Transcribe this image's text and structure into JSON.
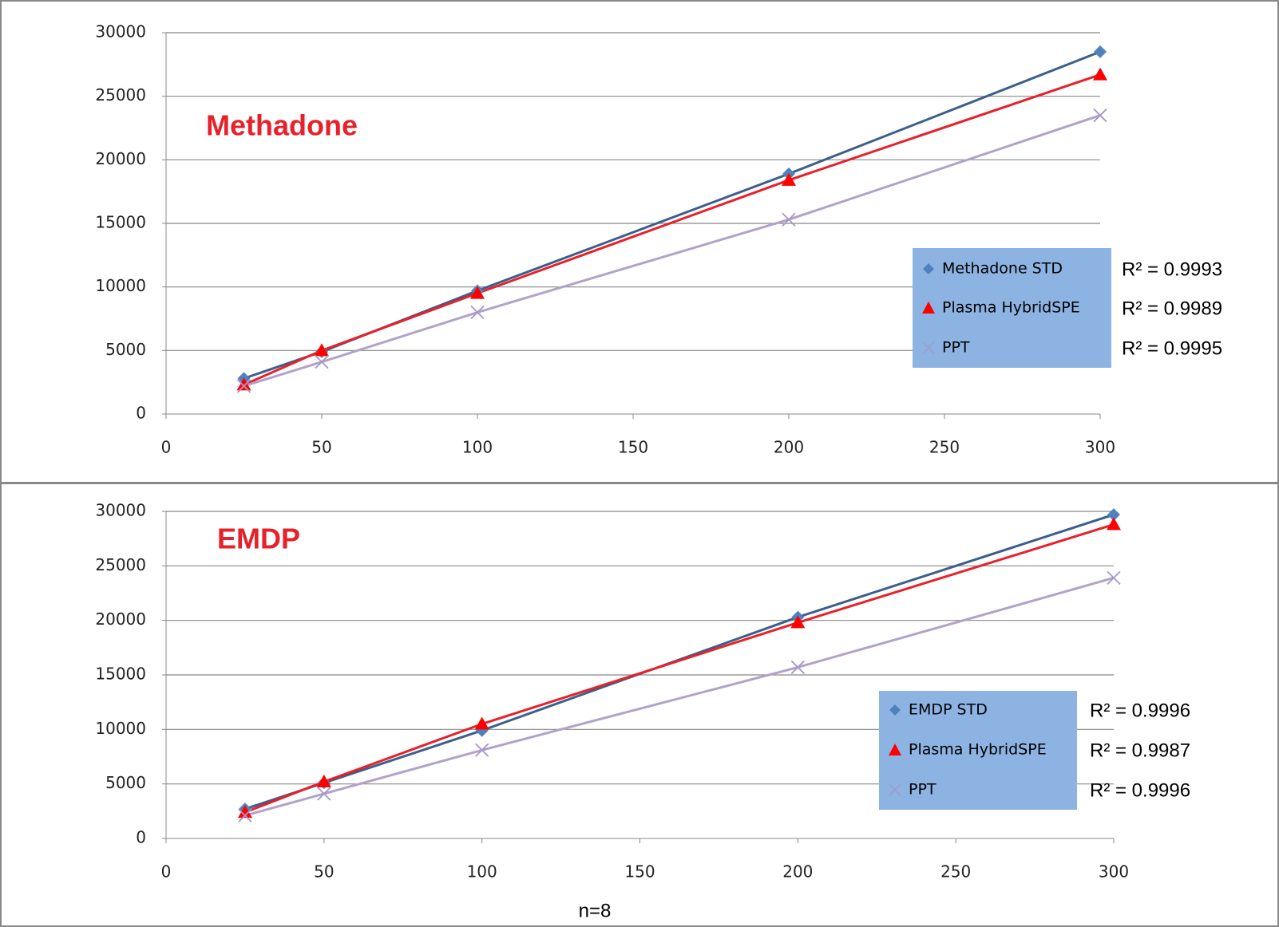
{
  "chart_data": [
    {
      "type": "line",
      "title": "Methadone",
      "x": [
        25,
        50,
        100,
        200,
        300
      ],
      "xlim": [
        0,
        300
      ],
      "xticks": [
        0,
        50,
        100,
        150,
        200,
        250,
        300
      ],
      "ylim": [
        0,
        30000
      ],
      "yticks": [
        0,
        5000,
        10000,
        15000,
        20000,
        25000,
        30000
      ],
      "grid": true,
      "series": [
        {
          "name": "Methadone  STD",
          "color": "#4f81bd",
          "line_color": "#3b5f8c",
          "marker": "diamond",
          "values": [
            2800,
            4900,
            9700,
            18900,
            28500
          ],
          "trendline_label": "R² = 0.9993"
        },
        {
          "name": "Plasma HybridSPE",
          "color": "#ff0000",
          "line_color": "#e8202a",
          "marker": "triangle",
          "values": [
            2300,
            5000,
            9500,
            18400,
            26700
          ],
          "trendline_label": "R² = 0.9989"
        },
        {
          "name": "PPT",
          "color": "#a696c8",
          "line_color": "#b3a2c7",
          "marker": "x",
          "values": [
            2200,
            4100,
            8000,
            15300,
            23500
          ],
          "trendline_label": "R² = 0.9995"
        }
      ]
    },
    {
      "type": "line",
      "title": "EMDP",
      "x": [
        25,
        50,
        100,
        200,
        300
      ],
      "xlim": [
        0,
        300
      ],
      "xticks": [
        0,
        50,
        100,
        150,
        200,
        250,
        300
      ],
      "ylim": [
        0,
        30000
      ],
      "yticks": [
        0,
        5000,
        10000,
        15000,
        20000,
        25000,
        30000
      ],
      "grid": true,
      "series": [
        {
          "name": "EMDP  STD",
          "color": "#4f81bd",
          "line_color": "#3b5f8c",
          "marker": "diamond",
          "values": [
            2700,
            5100,
            9900,
            20300,
            29700
          ],
          "trendline_label": "R² = 0.9996"
        },
        {
          "name": "Plasma HybridSPE",
          "color": "#ff0000",
          "line_color": "#e8202a",
          "marker": "triangle",
          "values": [
            2400,
            5200,
            10500,
            19800,
            28800
          ],
          "trendline_label": "R² = 0.9987"
        },
        {
          "name": "PPT",
          "color": "#a696c8",
          "line_color": "#b3a2c7",
          "marker": "x",
          "values": [
            2100,
            4100,
            8100,
            15700,
            23900
          ],
          "trendline_label": "R² = 0.9996"
        }
      ]
    }
  ],
  "caption": "n=8"
}
